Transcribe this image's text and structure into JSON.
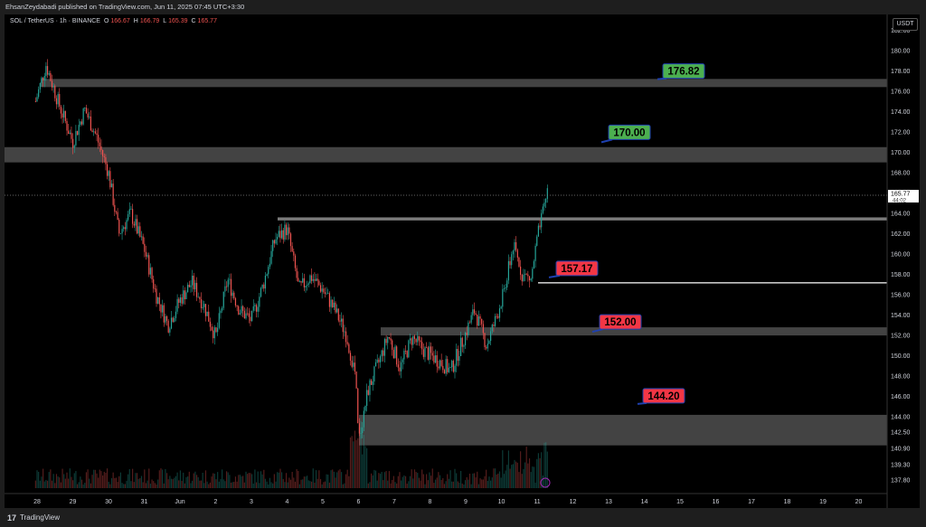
{
  "header": {
    "published": "EhsanZeydabadi published on TradingView.com, Jun 11, 2025 07:45 UTC+3:30"
  },
  "legend": {
    "symbol": "SOL / TetherUS · 1h · BINANCE",
    "o_label": "O",
    "o_value": "166.67",
    "h_label": "H",
    "h_value": "166.79",
    "l_label": "L",
    "l_value": "165.39",
    "c_label": "C",
    "c_value": "165.77"
  },
  "currency_button": "USDT",
  "footer": {
    "logo": "17",
    "brand": "TradingView"
  },
  "colors": {
    "up": "#26a69a",
    "down": "#ef5350",
    "zone": "#5a5a5a",
    "label_green": "#4caf50",
    "label_red": "#f23645",
    "label_border": "#1e40af",
    "background": "#000000"
  },
  "chart_data": {
    "type": "candlestick",
    "symbol": "SOL / TetherUS",
    "interval": "1h",
    "exchange": "BINANCE",
    "ylim": [
      137.0,
      183.0
    ],
    "y_ticks": [
      "182.00",
      "180.00",
      "178.00",
      "176.00",
      "174.00",
      "172.00",
      "170.00",
      "168.00",
      "166.00",
      "164.00",
      "162.00",
      "160.00",
      "158.00",
      "156.00",
      "154.00",
      "152.00",
      "150.00",
      "148.00",
      "146.00",
      "144.00",
      "142.50",
      "140.90",
      "139.30",
      "137.80"
    ],
    "x_ticks": [
      "28",
      "29",
      "30",
      "31",
      "Jun",
      "2",
      "3",
      "4",
      "5",
      "6",
      "7",
      "8",
      "9",
      "10",
      "11",
      "12",
      "13",
      "14",
      "15",
      "16",
      "17",
      "18",
      "19",
      "20"
    ],
    "last_price": "165.77",
    "countdown": "44:02",
    "price_path": [
      {
        "date": "May 27 23:00",
        "close": 175.0
      },
      {
        "date": "May 28 06:00",
        "close": 178.6
      },
      {
        "date": "May 28 14:00",
        "close": 175.0
      },
      {
        "date": "May 29 00:00",
        "close": 171.0
      },
      {
        "date": "May 29 08:00",
        "close": 174.2
      },
      {
        "date": "May 29 16:00",
        "close": 171.5
      },
      {
        "date": "May 30 00:00",
        "close": 168.0
      },
      {
        "date": "May 30 07:00",
        "close": 162.0
      },
      {
        "date": "May 30 15:00",
        "close": 164.0
      },
      {
        "date": "May 31 00:00",
        "close": 160.5
      },
      {
        "date": "May 31 08:00",
        "close": 156.0
      },
      {
        "date": "May 31 16:00",
        "close": 153.0
      },
      {
        "date": "Jun 1 00:00",
        "close": 155.5
      },
      {
        "date": "Jun 1 08:00",
        "close": 157.2
      },
      {
        "date": "Jun 1 16:00",
        "close": 155.0
      },
      {
        "date": "Jun 2 00:00",
        "close": 151.8
      },
      {
        "date": "Jun 2 08:00",
        "close": 157.5
      },
      {
        "date": "Jun 2 16:00",
        "close": 154.5
      },
      {
        "date": "Jun 3 00:00",
        "close": 153.5
      },
      {
        "date": "Jun 3 08:00",
        "close": 157.0
      },
      {
        "date": "Jun 3 16:00",
        "close": 161.5
      },
      {
        "date": "Jun 4 00:00",
        "close": 162.5
      },
      {
        "date": "Jun 4 08:00",
        "close": 156.5
      },
      {
        "date": "Jun 4 16:00",
        "close": 157.8
      },
      {
        "date": "Jun 5 00:00",
        "close": 156.5
      },
      {
        "date": "Jun 5 08:00",
        "close": 154.5
      },
      {
        "date": "Jun 5 16:00",
        "close": 152.0
      },
      {
        "date": "Jun 5 22:00",
        "close": 148.0
      },
      {
        "date": "Jun 6 00:00",
        "close": 141.5
      },
      {
        "date": "Jun 6 06:00",
        "close": 146.5
      },
      {
        "date": "Jun 6 14:00",
        "close": 149.5
      },
      {
        "date": "Jun 6 20:00",
        "close": 152.0
      },
      {
        "date": "Jun 7 04:00",
        "close": 148.8
      },
      {
        "date": "Jun 7 12:00",
        "close": 151.8
      },
      {
        "date": "Jun 7 20:00",
        "close": 150.5
      },
      {
        "date": "Jun 8 06:00",
        "close": 149.5
      },
      {
        "date": "Jun 8 14:00",
        "close": 148.5
      },
      {
        "date": "Jun 8 22:00",
        "close": 151.5
      },
      {
        "date": "Jun 9 06:00",
        "close": 154.5
      },
      {
        "date": "Jun 9 14:00",
        "close": 151.0
      },
      {
        "date": "Jun 9 20:00",
        "close": 153.5
      },
      {
        "date": "Jun 10 02:00",
        "close": 156.5
      },
      {
        "date": "Jun 10 08:00",
        "close": 160.8
      },
      {
        "date": "Jun 10 14:00",
        "close": 158.0
      },
      {
        "date": "Jun 10 20:00",
        "close": 157.5
      },
      {
        "date": "Jun 11 00:00",
        "close": 161.5
      },
      {
        "date": "Jun 11 04:00",
        "close": 164.0
      },
      {
        "date": "Jun 11 07:00",
        "close": 166.5
      },
      {
        "date": "Jun 11 07:45",
        "close": 165.77
      }
    ],
    "zones": [
      {
        "low": 176.4,
        "high": 177.2
      },
      {
        "low": 169.0,
        "high": 170.5
      },
      {
        "low": 163.3,
        "high": 163.6
      },
      {
        "low": 152.0,
        "high": 152.8
      },
      {
        "low": 141.2,
        "high": 144.2
      }
    ],
    "levels": [
      {
        "price": 157.17
      }
    ],
    "labels": [
      {
        "text": "176.82",
        "kind": "resistance"
      },
      {
        "text": "170.00",
        "kind": "resistance"
      },
      {
        "text": "157.17",
        "kind": "support"
      },
      {
        "text": "152.00",
        "kind": "support"
      },
      {
        "text": "144.20",
        "kind": "support"
      }
    ]
  }
}
